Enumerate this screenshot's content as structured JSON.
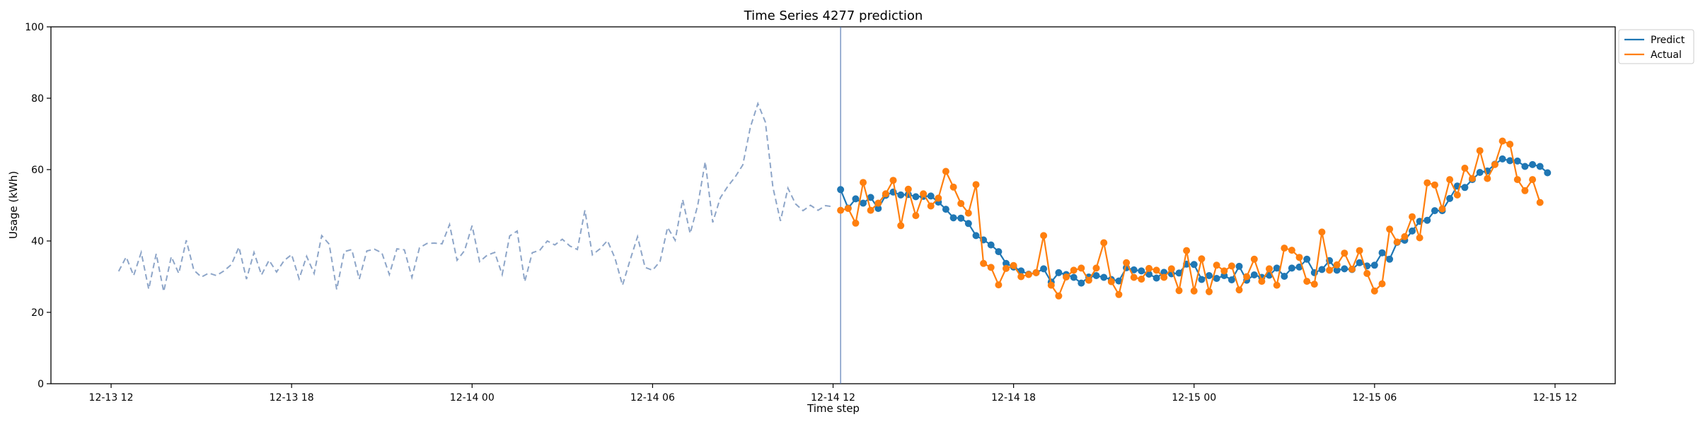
{
  "chart_data": {
    "type": "line",
    "title": "Time Series 4277 prediction",
    "xlabel": "Time step",
    "ylabel": "Usage (kWh)",
    "ylim": [
      0,
      100
    ],
    "yticks": [
      0,
      20,
      40,
      60,
      80,
      100
    ],
    "xlim": [
      "2023-12-13 10:00",
      "2023-12-15 14:00"
    ],
    "xticks": [
      {
        "t": "2023-12-13 12:00",
        "label": "12-13 12"
      },
      {
        "t": "2023-12-13 18:00",
        "label": "12-13 18"
      },
      {
        "t": "2023-12-14 00:00",
        "label": "12-14 00"
      },
      {
        "t": "2023-12-14 06:00",
        "label": "12-14 06"
      },
      {
        "t": "2023-12-14 12:00",
        "label": "12-14 12"
      },
      {
        "t": "2023-12-14 18:00",
        "label": "12-14 18"
      },
      {
        "t": "2023-12-15 00:00",
        "label": "12-15 00"
      },
      {
        "t": "2023-12-15 06:00",
        "label": "12-15 06"
      },
      {
        "t": "2023-12-15 12:00",
        "label": "12-15 12"
      }
    ],
    "interval_minutes": 15,
    "grid": false,
    "legend_position": "outside-top-right",
    "forecast_start": "2023-12-14 12:15",
    "history": {
      "start": "2023-12-13 12:15",
      "style": "dashed",
      "color": "#8da5c8",
      "values": [
        31.5,
        35.5,
        30.3,
        36.8,
        26.5,
        36.4,
        25.8,
        35.6,
        30.9,
        40.2,
        31.8,
        29.9,
        31.0,
        30.3,
        31.6,
        33.4,
        38.3,
        29.3,
        36.8,
        30.5,
        34.6,
        31.3,
        34.5,
        36.2,
        29.4,
        35.7,
        30.9,
        41.5,
        39.1,
        26.4,
        37.0,
        37.6,
        29.3,
        37.2,
        37.7,
        36.7,
        30.6,
        37.8,
        37.5,
        29.8,
        38.1,
        39.3,
        39.4,
        39.2,
        44.6,
        34.6,
        37.3,
        44.3,
        34.2,
        36.0,
        36.8,
        30.6,
        41.4,
        42.8,
        28.6,
        36.7,
        37.4,
        40.0,
        38.9,
        40.5,
        38.6,
        37.6,
        48.6,
        36.1,
        37.8,
        40.1,
        35.2,
        27.6,
        34.6,
        41.2,
        32.6,
        31.8,
        34.3,
        43.8,
        40.2,
        51.6,
        42.1,
        50.0,
        62.2,
        45.2,
        52.1,
        55.3,
        58.0,
        61.3,
        71.9,
        78.5,
        73.3,
        55.0,
        45.6,
        54.8,
        50.4,
        48.5,
        50.0,
        48.6,
        49.9,
        49.6
      ]
    },
    "series": [
      {
        "name": "Predict",
        "color": "#1f77b4",
        "start": "2023-12-14 12:15",
        "values": [
          54.4,
          49.2,
          51.8,
          50.6,
          52.2,
          49.1,
          52.8,
          53.7,
          52.9,
          53.0,
          52.4,
          52.5,
          52.6,
          50.9,
          48.9,
          46.5,
          46.4,
          44.9,
          41.5,
          40.3,
          38.9,
          37.0,
          33.7,
          32.7,
          31.6,
          30.7,
          31.1,
          32.2,
          28.5,
          31.1,
          30.6,
          29.8,
          28.2,
          29.9,
          30.3,
          29.8,
          29.2,
          28.8,
          32.5,
          31.9,
          31.6,
          30.7,
          29.6,
          31.2,
          30.8,
          31.0,
          33.5,
          33.4,
          29.2,
          30.3,
          29.5,
          30.3,
          29.1,
          32.9,
          29.0,
          30.5,
          29.8,
          30.4,
          32.4,
          30.1,
          32.4,
          32.7,
          34.9,
          31.1,
          32.0,
          34.5,
          31.8,
          32.2,
          32.0,
          33.9,
          33.0,
          33.2,
          36.7,
          34.9,
          39.6,
          40.2,
          42.8,
          45.5,
          45.8,
          48.5,
          48.5,
          51.9,
          55.4,
          55.0,
          57.2,
          59.2,
          59.6,
          61.5,
          63.0,
          62.5,
          62.4,
          60.9,
          61.4,
          60.9,
          59.1
        ]
      },
      {
        "name": "Actual",
        "color": "#ff7f0e",
        "start": "2023-12-14 12:15",
        "values": [
          48.6,
          49.1,
          45.0,
          56.4,
          48.6,
          50.6,
          53.2,
          57.0,
          44.3,
          54.5,
          47.1,
          53.2,
          49.8,
          52.0,
          59.5,
          55.1,
          50.5,
          47.8,
          55.8,
          33.7,
          32.6,
          27.7,
          32.3,
          33.1,
          30.0,
          30.6,
          31.1,
          41.5,
          27.6,
          24.6,
          29.9,
          31.8,
          32.4,
          29.0,
          32.4,
          39.5,
          28.6,
          25.0,
          33.9,
          29.8,
          29.3,
          32.3,
          31.8,
          29.8,
          32.2,
          26.1,
          37.3,
          26.0,
          35.0,
          25.8,
          33.2,
          31.6,
          33.0,
          26.3,
          30.0,
          34.9,
          28.7,
          32.2,
          27.6,
          38.0,
          37.4,
          35.4,
          28.7,
          27.9,
          42.5,
          31.8,
          33.3,
          36.6,
          32.1,
          37.3,
          30.9,
          26.0,
          28.0,
          43.3,
          39.7,
          41.2,
          46.8,
          40.9,
          56.3,
          55.7,
          49.0,
          57.2,
          52.9,
          60.4,
          57.5,
          65.3,
          57.5,
          61.4,
          68.0,
          67.1,
          57.2,
          54.1,
          57.2,
          50.8
        ]
      }
    ]
  }
}
